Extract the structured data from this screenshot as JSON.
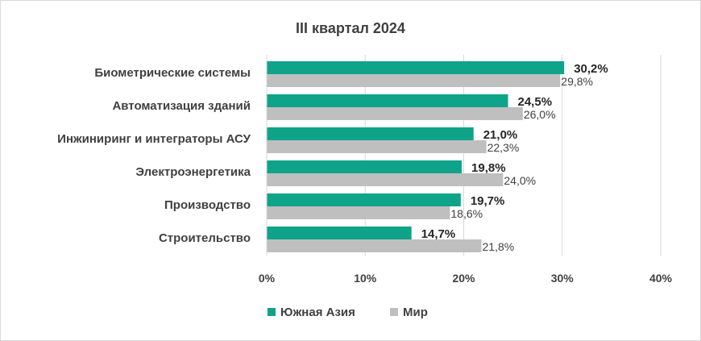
{
  "chart_data": {
    "type": "bar",
    "orientation": "horizontal",
    "title": "III квартал 2024",
    "categories": [
      "Биометрические системы",
      "Автоматизация зданий",
      "Инжиниринг и интеграторы АСУ",
      "Электроэнергетика",
      "Производство",
      "Строительство"
    ],
    "series": [
      {
        "name": "Южная Азия",
        "color": "#0fa38a",
        "values": [
          30.2,
          24.5,
          21.0,
          19.8,
          19.7,
          14.7
        ],
        "labels": [
          "30,2%",
          "24,5%",
          "21,0%",
          "19,8%",
          "19,7%",
          "14,7%"
        ]
      },
      {
        "name": "Мир",
        "color": "#bfbfbf",
        "values": [
          29.8,
          26.0,
          22.3,
          24.0,
          18.6,
          21.8
        ],
        "labels": [
          "29,8%",
          "26,0%",
          "22,3%",
          "24,0%",
          "18,6%",
          "21,8%"
        ]
      }
    ],
    "xlim": [
      0,
      40
    ],
    "ticks": [
      0,
      10,
      20,
      30,
      40
    ],
    "tick_labels": [
      "0%",
      "10%",
      "20%",
      "30%",
      "40%"
    ],
    "grid": "vertical",
    "legend": "bottom"
  }
}
